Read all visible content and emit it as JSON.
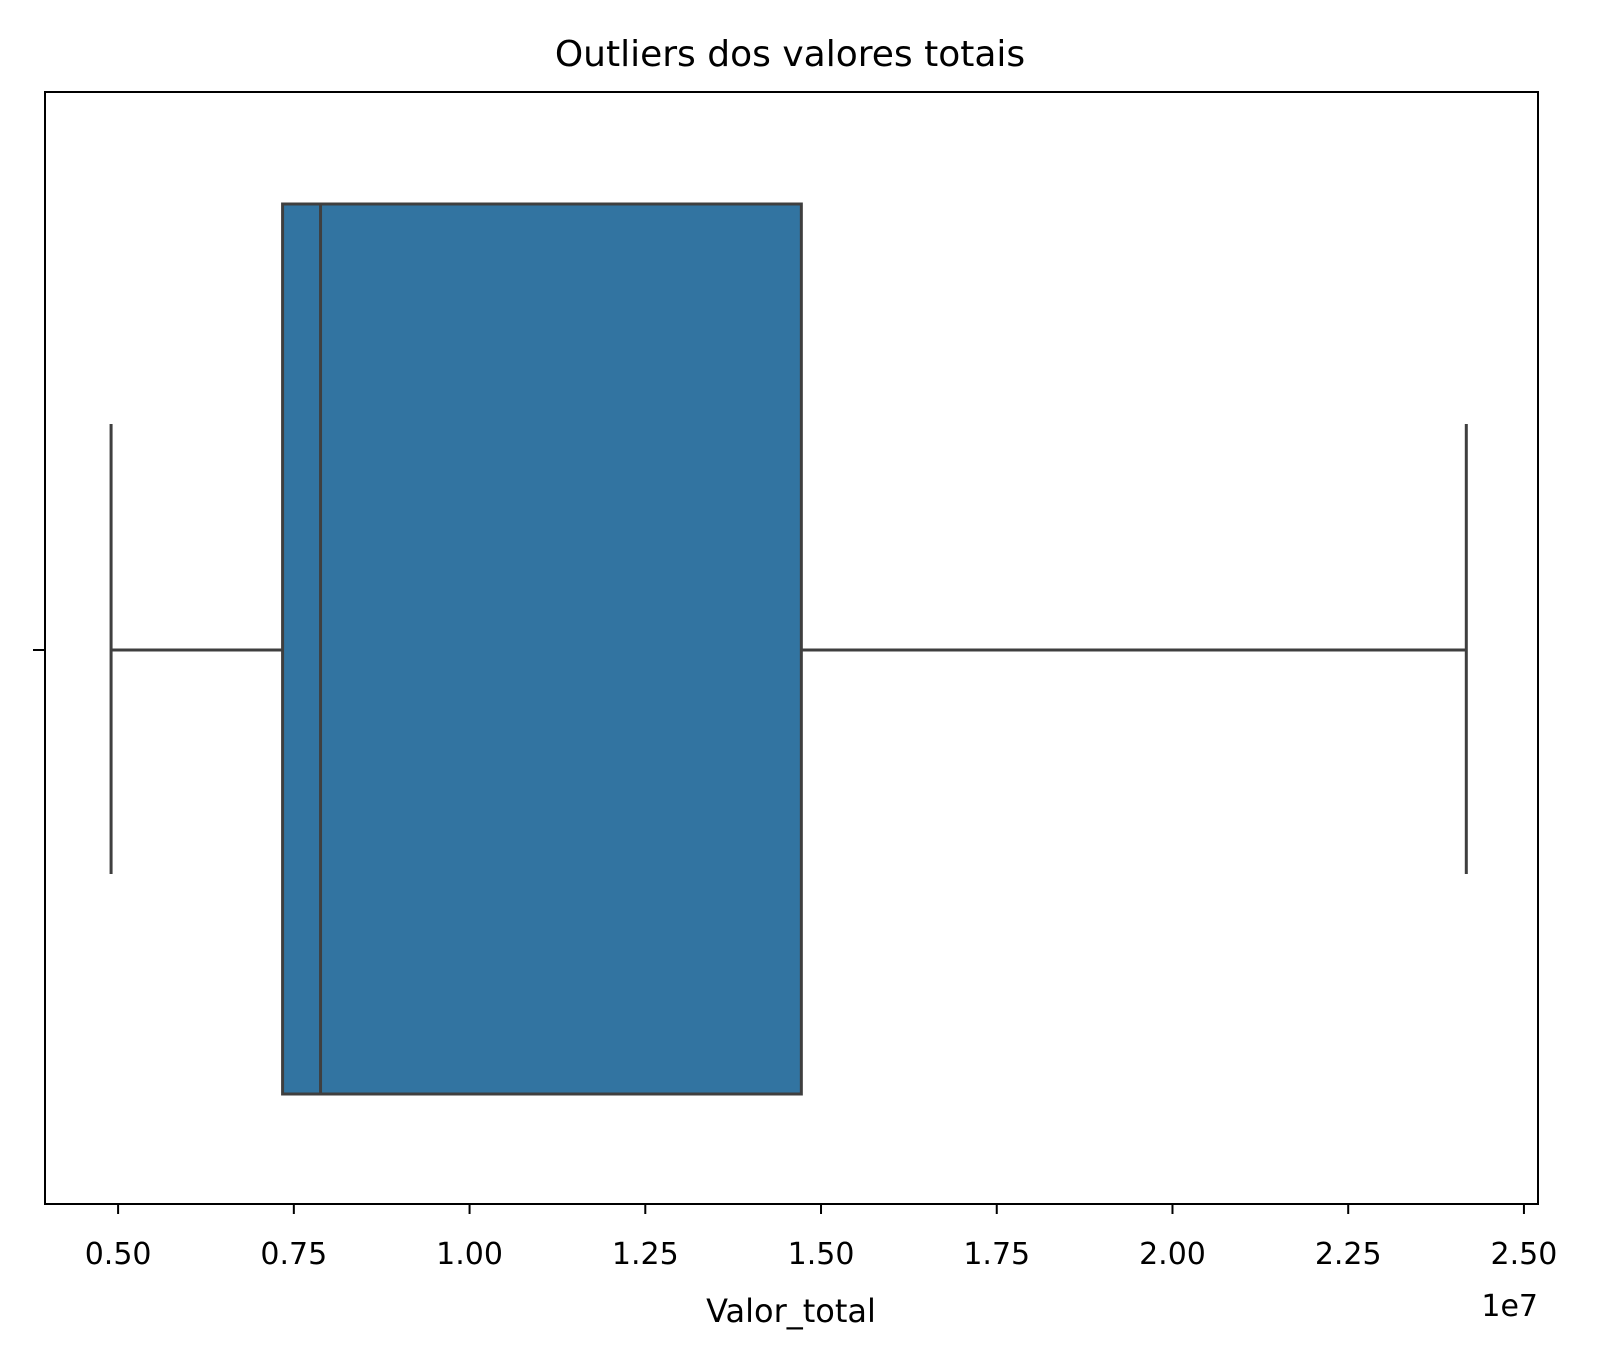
{
  "chart_data": {
    "type": "boxplot",
    "orientation": "horizontal",
    "title": "Outliers dos valores totais",
    "xlabel": "Valor_total",
    "ylabel": "",
    "offset_text": "1e7",
    "xlim": [
      3960000,
      25200000
    ],
    "xticks": [
      5000000,
      7500000,
      10000000,
      12500000,
      15000000,
      17500000,
      20000000,
      22500000,
      25000000
    ],
    "xtick_labels": [
      "0.50",
      "0.75",
      "1.00",
      "1.25",
      "1.50",
      "1.75",
      "2.00",
      "2.25",
      "2.50"
    ],
    "grid": false,
    "box": {
      "whisker_low": 4900000,
      "q1": 7340000,
      "median": 7880000,
      "q3": 14720000,
      "whisker_high": 24180000
    },
    "colors": {
      "box_fill": "#3274a1",
      "box_line": "#3f3f3f",
      "axes": "#000000"
    }
  }
}
